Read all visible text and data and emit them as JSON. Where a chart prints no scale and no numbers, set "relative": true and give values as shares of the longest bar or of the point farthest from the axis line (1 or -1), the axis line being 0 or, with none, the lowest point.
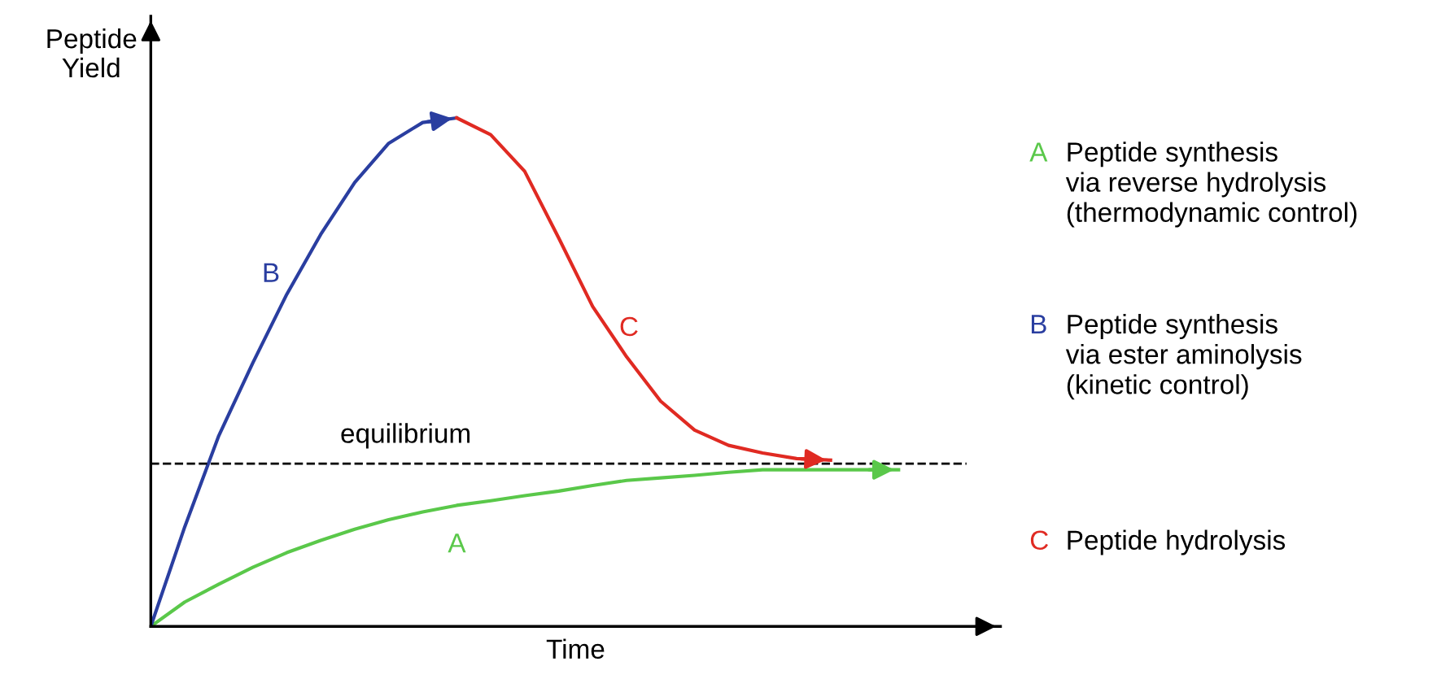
{
  "chart_data": {
    "type": "line",
    "relative": true,
    "xlabel": "Time",
    "ylabel": "Peptide\nYield",
    "marker": "none",
    "line_style": "solid",
    "categories": [
      null,
      null,
      null,
      null,
      null,
      null,
      null,
      null,
      null,
      null,
      null,
      null,
      null,
      null,
      null,
      null,
      null,
      null,
      null,
      null,
      null,
      null,
      null
    ],
    "series": [
      {
        "name": "A",
        "color": "#5ac84a",
        "values": [
          0,
          0.048,
          0.083,
          0.116,
          0.145,
          0.169,
          0.191,
          0.21,
          0.225,
          0.238,
          0.247,
          0.257,
          0.266,
          0.277,
          0.287,
          0.292,
          0.297,
          0.303,
          0.308,
          0.308,
          0.308,
          0.308,
          0.308
        ]
      },
      {
        "name": "B",
        "color": "#2a3ea0",
        "values": [
          0,
          0.196,
          0.375,
          0.518,
          0.653,
          0.771,
          0.873,
          0.95,
          0.991,
          1,
          null,
          null,
          null,
          null,
          null,
          null,
          null,
          null,
          null,
          null,
          null,
          null,
          null
        ]
      },
      {
        "name": "C",
        "color": "#e02a22",
        "values": [
          null,
          null,
          null,
          null,
          null,
          null,
          null,
          null,
          null,
          1,
          0.967,
          0.895,
          0.764,
          0.629,
          0.53,
          0.443,
          0.386,
          0.356,
          0.341,
          0.33,
          0.327,
          null,
          null
        ]
      }
    ],
    "ref_lines": [
      {
        "axis": "y",
        "value": 0.32,
        "label": "equilibrium",
        "color": "#000000",
        "line_style": "dashed"
      }
    ],
    "annotations": [
      "Peptide synthesis\nvia reverse hydrolysis\n(thermodynamic control)",
      "Peptide synthesis\nvia ester aminolysis\n(kinetic control)",
      "Peptide hydrolysis"
    ]
  }
}
